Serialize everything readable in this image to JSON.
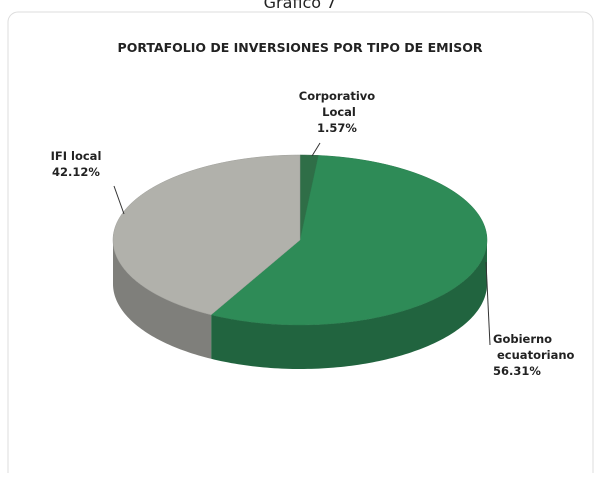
{
  "caption": "Gráfico 7",
  "chart_data": {
    "type": "pie3d",
    "title": "PORTAFOLIO DE INVERSIONES POR TIPO DE EMISOR",
    "categories": [
      "Corporativo Local",
      "Gobierno ecuatoriano",
      "IFI local"
    ],
    "values": [
      1.57,
      56.31,
      42.12
    ],
    "value_labels": [
      "1.57%",
      "56.31%",
      "42.12%"
    ],
    "colors": [
      "#2f6e47",
      "#2e8b57",
      "#b1b1ab"
    ]
  }
}
